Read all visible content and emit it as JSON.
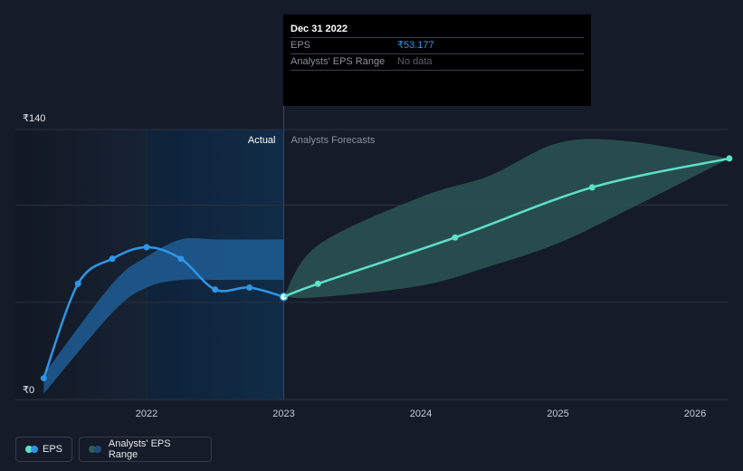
{
  "tooltip": {
    "date": "Dec 31 2022",
    "rows": [
      {
        "label": "EPS",
        "value": "₹53.177"
      },
      {
        "label": "Analysts' EPS Range",
        "value": "No data"
      }
    ]
  },
  "legend": {
    "eps_label": "EPS",
    "range_label": "Analysts' EPS Range"
  },
  "colors": {
    "background": "#151b28",
    "eps_actual": "#2e96e6",
    "eps_forecast": "#5de0c8",
    "range_band": "#2f5d5a",
    "actual_highlight": "#102c48"
  },
  "chart_data": {
    "type": "line",
    "title": "",
    "xlabel": "",
    "ylabel": "",
    "x_ticks": [
      "2022",
      "2023",
      "2024",
      "2025",
      "2026"
    ],
    "y_tick_labels": [
      "₹140",
      "₹0"
    ],
    "ylim": [
      0,
      140
    ],
    "divider_labels": {
      "actual": "Actual",
      "forecast": "Analysts Forecasts"
    },
    "divider_date": 2023.0,
    "series": [
      {
        "name": "EPS (Actual)",
        "x": [
          2021.25,
          2021.5,
          2021.75,
          2022.0,
          2022.25,
          2022.5,
          2022.75,
          2023.0
        ],
        "values": [
          11,
          60,
          73,
          79,
          73,
          57,
          58,
          53.2
        ]
      },
      {
        "name": "EPS (Forecast)",
        "x": [
          2023.0,
          2023.25,
          2024.25,
          2025.25,
          2026.25
        ],
        "values": [
          53.2,
          60,
          84,
          110,
          125
        ]
      }
    ],
    "ranges": [
      {
        "name": "Actual EPS Range",
        "x": [
          2021.25,
          2021.75,
          2022.0,
          2022.25,
          2022.5,
          2022.75,
          2023.0
        ],
        "low": [
          3,
          45,
          58,
          62,
          62,
          62,
          62
        ],
        "high": [
          13,
          60,
          74,
          83,
          83,
          83,
          83
        ]
      },
      {
        "name": "Analysts' EPS Range",
        "x": [
          2023.0,
          2023.25,
          2024.0,
          2024.5,
          2025.0,
          2025.5,
          2026.25
        ],
        "low": [
          53.2,
          53,
          59,
          69,
          81,
          98,
          125
        ],
        "high": [
          53.2,
          80,
          105,
          116,
          133,
          134,
          125
        ]
      }
    ]
  }
}
